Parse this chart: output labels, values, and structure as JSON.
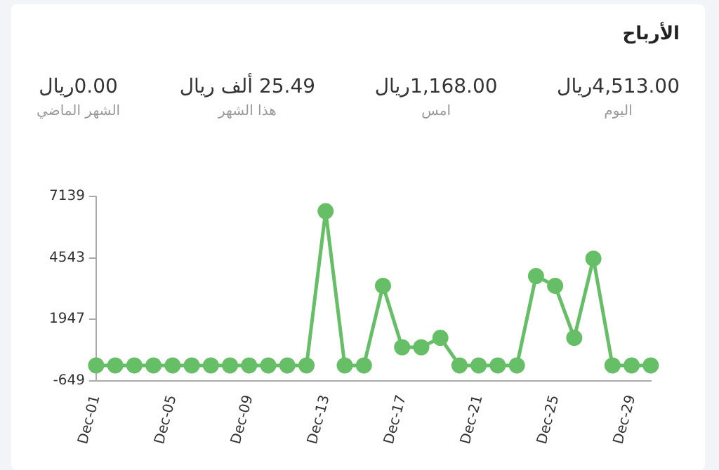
{
  "chart_data": [
    {
      "type": "other",
      "title": "الأرباح",
      "annotations": [
        "4,513.00ريال",
        "اليوم",
        "1,168.00ريال",
        "امس",
        "25.49 ألف ريال",
        "هذا الشهر",
        "0.00ريال",
        "الشهر الماضي"
      ]
    },
    {
      "type": "line",
      "categories": [
        "Dec-01",
        null,
        null,
        null,
        "Dec-05",
        null,
        null,
        null,
        "Dec-09",
        null,
        null,
        null,
        "Dec-13",
        null,
        null,
        null,
        "Dec-17",
        null,
        null,
        null,
        "Dec-21",
        null,
        null,
        null,
        "Dec-25",
        null,
        null,
        null,
        "Dec-29",
        null
      ],
      "series": [
        {
          "color": "#66bf66",
          "values": [
            0,
            0,
            0,
            0,
            0,
            0,
            0,
            0,
            0,
            0,
            0,
            0,
            6514,
            0,
            0,
            3365,
            769,
            769,
            1168,
            0,
            0,
            0,
            0,
            3774,
            3365,
            1168,
            4513,
            0,
            0,
            0
          ]
        }
      ],
      "ylim": [
        -649,
        7139
      ],
      "yticks": [
        -649,
        1947,
        4543,
        7139
      ],
      "grid": false,
      "legend": false,
      "marker": "circle",
      "line_style": "solid"
    }
  ]
}
